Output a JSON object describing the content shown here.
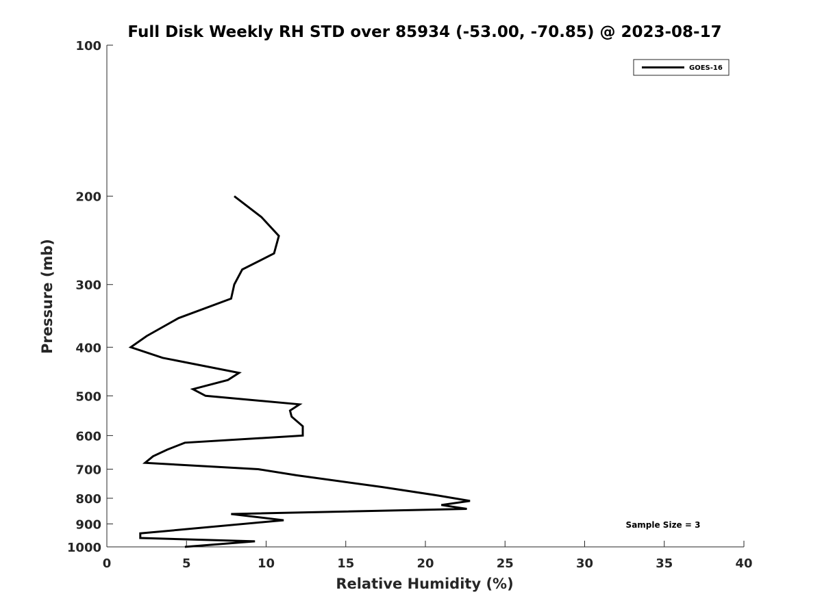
{
  "chart_data": {
    "type": "line",
    "title": "Full Disk Weekly RH STD over 85934 (-53.00, -70.85) @ 2023-08-17",
    "xlabel": "Relative Humidity (%)",
    "ylabel": "Pressure (mb)",
    "xlim": [
      0,
      40
    ],
    "ylim": [
      100,
      1000
    ],
    "yscale": "log",
    "yreversed": true,
    "xticks": [
      0,
      5,
      10,
      15,
      20,
      25,
      30,
      35,
      40
    ],
    "yticks": [
      100,
      200,
      300,
      400,
      500,
      600,
      700,
      800,
      900,
      1000
    ],
    "grid": false,
    "legend_position": "top-right",
    "annotation": "Sample Size = 3",
    "series": [
      {
        "name": "GOES-16",
        "color": "#000000",
        "points": [
          {
            "x": 8.0,
            "p": 200
          },
          {
            "x": 9.7,
            "p": 220
          },
          {
            "x": 10.8,
            "p": 240
          },
          {
            "x": 10.5,
            "p": 260
          },
          {
            "x": 8.5,
            "p": 280
          },
          {
            "x": 8.0,
            "p": 300
          },
          {
            "x": 7.8,
            "p": 320
          },
          {
            "x": 4.5,
            "p": 350
          },
          {
            "x": 2.5,
            "p": 380
          },
          {
            "x": 1.5,
            "p": 400
          },
          {
            "x": 3.5,
            "p": 420
          },
          {
            "x": 8.3,
            "p": 450
          },
          {
            "x": 7.6,
            "p": 465
          },
          {
            "x": 5.4,
            "p": 485
          },
          {
            "x": 6.2,
            "p": 500
          },
          {
            "x": 12.1,
            "p": 520
          },
          {
            "x": 11.5,
            "p": 535
          },
          {
            "x": 11.6,
            "p": 550
          },
          {
            "x": 12.3,
            "p": 575
          },
          {
            "x": 12.3,
            "p": 600
          },
          {
            "x": 4.9,
            "p": 620
          },
          {
            "x": 3.8,
            "p": 640
          },
          {
            "x": 2.9,
            "p": 660
          },
          {
            "x": 2.4,
            "p": 680
          },
          {
            "x": 9.5,
            "p": 700
          },
          {
            "x": 11.9,
            "p": 720
          },
          {
            "x": 17.3,
            "p": 760
          },
          {
            "x": 20.8,
            "p": 790
          },
          {
            "x": 22.8,
            "p": 810
          },
          {
            "x": 21.0,
            "p": 825
          },
          {
            "x": 22.6,
            "p": 840
          },
          {
            "x": 7.8,
            "p": 860
          },
          {
            "x": 11.1,
            "p": 885
          },
          {
            "x": 2.1,
            "p": 940
          },
          {
            "x": 2.1,
            "p": 960
          },
          {
            "x": 9.3,
            "p": 975
          },
          {
            "x": 4.9,
            "p": 1000
          }
        ]
      }
    ]
  }
}
